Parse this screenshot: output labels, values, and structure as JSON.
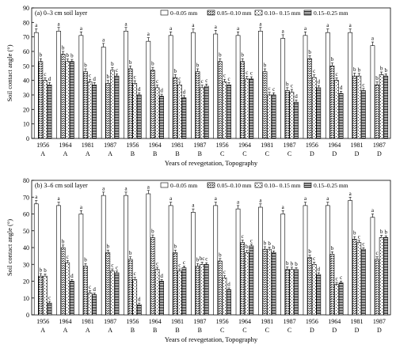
{
  "chart_data": [
    {
      "type": "bar",
      "title": "(a)  0–3 cm soil layer",
      "xlabel": "Years of revegetation, Topography",
      "ylabel": "Soil contact angle (°)",
      "ylim": [
        0,
        90
      ],
      "yticks": [
        0,
        10,
        20,
        30,
        40,
        50,
        60,
        70,
        80,
        90
      ],
      "grid": false,
      "legend_position": "top-right",
      "categories": [
        "1956",
        "1964",
        "1981",
        "1987",
        "1956",
        "1964",
        "1981",
        "1987",
        "1956",
        "1964",
        "1981",
        "1987",
        "1956",
        "1964",
        "1981",
        "1987"
      ],
      "topography": [
        "A",
        "A",
        "A",
        "A",
        "B",
        "B",
        "B",
        "B",
        "C",
        "C",
        "C",
        "C",
        "D",
        "D",
        "D",
        "D"
      ],
      "series": [
        {
          "name": "0–0.05 mm",
          "pattern": "white",
          "values": [
            73,
            74,
            71,
            63,
            74,
            67,
            71,
            73,
            72,
            71,
            74,
            69,
            71,
            73,
            73,
            64
          ],
          "errors": [
            2.5,
            2.5,
            2.5,
            2.5,
            2.5,
            2.5,
            2.5,
            2.5,
            2.5,
            2.5,
            2.5,
            2.5,
            2.5,
            2.5,
            2.5,
            2.5
          ]
        },
        {
          "name": "0.05–0.10 mm",
          "pattern": "dense",
          "values": [
            53,
            58,
            46,
            38,
            48,
            47,
            42,
            46,
            53,
            53,
            46,
            33,
            55,
            50,
            43,
            37
          ],
          "errors": [
            2,
            2,
            2,
            2,
            2,
            2,
            2,
            2,
            2,
            2,
            2,
            2,
            2,
            2,
            2,
            2
          ]
        },
        {
          "name": "0.10– 0.15 mm",
          "pattern": "sparse",
          "values": [
            40,
            53,
            39,
            47,
            38,
            35,
            37,
            35,
            39,
            41,
            30,
            32,
            42,
            40,
            43,
            44
          ],
          "errors": [
            1.8,
            1.8,
            1.8,
            1.8,
            1.8,
            1.8,
            1.8,
            1.8,
            1.8,
            1.8,
            1.8,
            1.8,
            1.8,
            1.8,
            1.8,
            1.8
          ]
        },
        {
          "name": "0.15–0.25 mm",
          "pattern": "hatch",
          "values": [
            37,
            53,
            37,
            43,
            30,
            29,
            28,
            36,
            37,
            41,
            30,
            25,
            35,
            31,
            33,
            43
          ],
          "errors": [
            1.5,
            1.5,
            1.5,
            1.5,
            1.5,
            1.5,
            1.5,
            1.5,
            1.5,
            1.5,
            1.5,
            1.5,
            1.5,
            1.5,
            1.5,
            1.5
          ]
        }
      ],
      "letters": [
        [
          "a",
          "b",
          "c",
          "d"
        ],
        [
          "a",
          "b",
          "b",
          "b"
        ],
        [
          "a",
          "b",
          "c",
          "d"
        ],
        [
          "a",
          "b",
          "b",
          "c"
        ],
        [
          "a",
          "b",
          "c",
          "d"
        ],
        [
          "a",
          "b",
          "c",
          "d"
        ],
        [
          "a",
          "b",
          "c",
          "d"
        ],
        [
          "a",
          "b",
          "c",
          "c"
        ],
        [
          "a",
          "b",
          "c",
          "c"
        ],
        [
          "a",
          "b",
          "c",
          "c"
        ],
        [
          "a",
          "b",
          "c",
          "c"
        ],
        [
          "a",
          "b",
          "c",
          "d"
        ],
        [
          "a",
          "b",
          "c",
          "d"
        ],
        [
          "a",
          "b",
          "c",
          "d"
        ],
        [
          "a",
          "b",
          "b",
          "c"
        ],
        [
          "a",
          "b",
          "b",
          "b"
        ]
      ]
    },
    {
      "type": "bar",
      "title": "(b)  3–6 cm soil layer",
      "xlabel": "Years of revegetation, Topography",
      "ylabel": "Soil contact angle (°)",
      "ylim": [
        0,
        80
      ],
      "yticks": [
        0,
        10,
        20,
        30,
        40,
        50,
        60,
        70,
        80
      ],
      "grid": false,
      "legend_position": "top-right",
      "categories": [
        "1956",
        "1964",
        "1981",
        "1987",
        "1956",
        "1964",
        "1981",
        "1987",
        "1956",
        "1964",
        "1981",
        "1987",
        "1956",
        "1964",
        "1981",
        "1987"
      ],
      "topography": [
        "A",
        "A",
        "A",
        "A",
        "B",
        "B",
        "B",
        "B",
        "C",
        "C",
        "C",
        "C",
        "D",
        "D",
        "D",
        "D"
      ],
      "series": [
        {
          "name": "0–0.05 mm",
          "pattern": "white",
          "values": [
            66,
            65,
            60,
            71,
            71,
            72,
            65,
            61,
            65,
            63,
            64,
            60,
            65,
            65,
            68,
            58
          ],
          "errors": [
            2,
            2,
            2,
            2,
            2,
            2,
            2,
            2,
            2,
            2,
            2,
            2,
            2,
            2,
            2,
            2
          ]
        },
        {
          "name": "0.05–0.10 mm",
          "pattern": "dense",
          "values": [
            23,
            40,
            29,
            37,
            33,
            46,
            37,
            29,
            32,
            43,
            39,
            27,
            34,
            36,
            45,
            33
          ],
          "errors": [
            1.5,
            1.5,
            1.5,
            1.5,
            1.5,
            1.5,
            1.5,
            1.5,
            1.5,
            1.5,
            1.5,
            1.5,
            1.5,
            1.5,
            1.5,
            1.5
          ]
        },
        {
          "name": "0.10– 0.15 mm",
          "pattern": "sparse",
          "values": [
            23,
            31,
            13,
            26,
            21,
            27,
            26,
            30,
            22,
            37,
            39,
            27,
            30,
            18,
            43,
            46
          ],
          "errors": [
            1.3,
            1.3,
            1.3,
            1.3,
            1.3,
            1.3,
            1.3,
            1.3,
            1.3,
            1.3,
            1.3,
            1.3,
            1.3,
            1.3,
            1.3,
            1.3
          ]
        },
        {
          "name": "0.15–0.25 mm",
          "pattern": "hatch",
          "values": [
            7,
            20,
            12,
            25,
            6,
            20,
            28,
            30,
            15,
            41,
            37,
            27,
            24,
            19,
            39,
            46
          ],
          "errors": [
            1,
            1,
            1,
            1,
            1,
            1,
            1,
            1,
            1,
            1,
            1,
            1,
            1,
            1,
            1,
            1
          ]
        }
      ],
      "letters": [
        [
          "a",
          "b",
          "b",
          "c"
        ],
        [
          "a",
          "b",
          "c",
          "d"
        ],
        [
          "a",
          "b",
          "c",
          "d"
        ],
        [
          "a",
          "b",
          "c",
          "c"
        ],
        [
          "a",
          "b",
          "c",
          "d"
        ],
        [
          "a",
          "b",
          "c",
          "d"
        ],
        [
          "a",
          "b",
          "c",
          "c"
        ],
        [
          "a",
          "b",
          "bc",
          "c"
        ],
        [
          "a",
          "b",
          "c",
          "d"
        ],
        [
          "a",
          "c",
          "b",
          "c"
        ],
        [
          "a",
          "b",
          "b",
          "b"
        ],
        [
          "a",
          "b",
          "b",
          "b"
        ],
        [
          "a",
          "b",
          "c",
          "d"
        ],
        [
          "a",
          "b",
          "c",
          "c"
        ],
        [
          "a",
          "b",
          "c",
          "c"
        ],
        [
          "a",
          "c",
          "b",
          "b"
        ]
      ]
    }
  ]
}
